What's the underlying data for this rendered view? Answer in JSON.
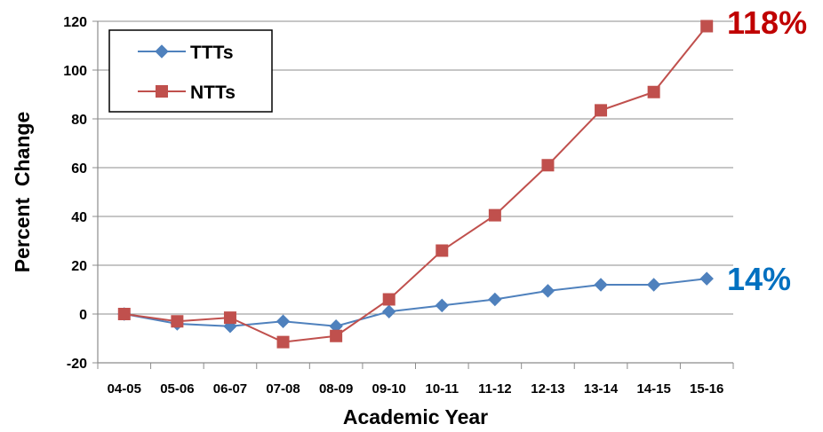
{
  "chart_data": {
    "type": "line",
    "title": "",
    "xlabel": "Academic Year",
    "ylabel": "Percent  Change",
    "ylim": [
      -20,
      120
    ],
    "yticks": [
      -20,
      0,
      20,
      40,
      60,
      80,
      100,
      120
    ],
    "grid": true,
    "legend_position": "top-left",
    "categories": [
      "04-05",
      "05-06",
      "06-07",
      "07-08",
      "08-09",
      "09-10",
      "10-11",
      "11-12",
      "12-13",
      "13-14",
      "14-15",
      "15-16"
    ],
    "series": [
      {
        "name": "TTTs",
        "color": "#4F81BD",
        "marker": "diamond",
        "values": [
          0,
          -4,
          -5,
          -3,
          -5,
          1,
          3.5,
          6,
          9.5,
          12,
          12,
          14.5
        ]
      },
      {
        "name": "NTTs",
        "color": "#C0504D",
        "marker": "square",
        "values": [
          0,
          -3,
          -1.5,
          -11.5,
          -9,
          6,
          26,
          40.5,
          61,
          83.5,
          91,
          118
        ]
      }
    ],
    "annotations": [
      {
        "text": "118%",
        "series": "NTTs",
        "color": "#C00000"
      },
      {
        "text": "14%",
        "series": "TTTs",
        "color": "#0070C0"
      }
    ]
  }
}
